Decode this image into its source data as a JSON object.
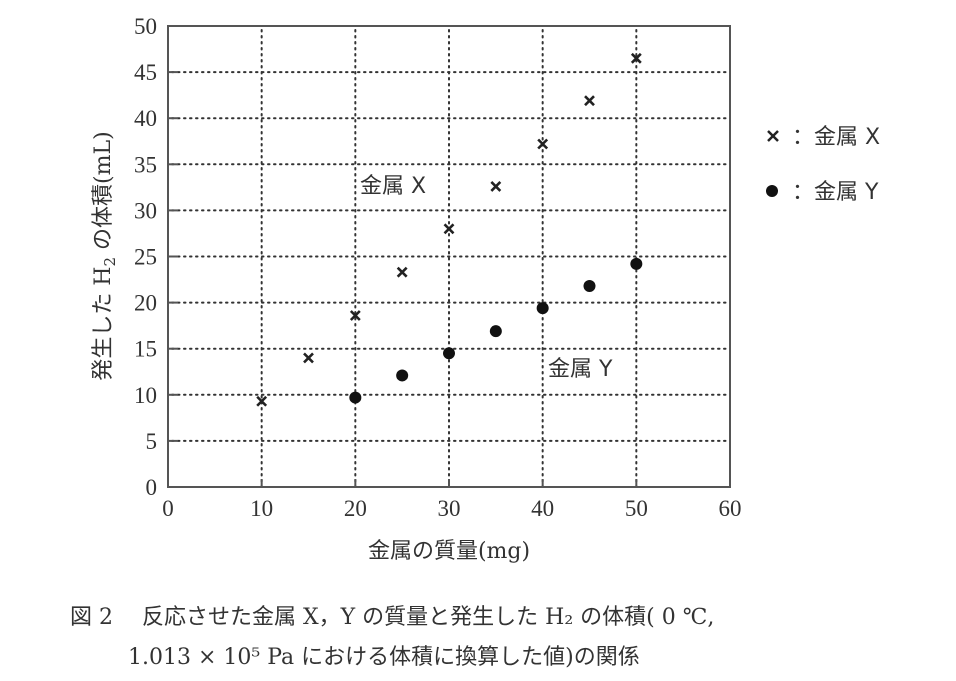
{
  "chart_data": {
    "type": "scatter",
    "title": "",
    "xlabel": "金属の質量(mg)",
    "ylabel": "発生したH₂の体積(mL)",
    "xlim": [
      0,
      60
    ],
    "ylim": [
      0,
      50
    ],
    "xticks": [
      0,
      10,
      20,
      30,
      40,
      50,
      60
    ],
    "yticks": [
      0,
      5,
      10,
      15,
      20,
      25,
      30,
      35,
      40,
      45,
      50
    ],
    "grid": "dotted",
    "legend_position": "right",
    "series": [
      {
        "name": "金属X",
        "marker": "x",
        "x": [
          10,
          15,
          20,
          25,
          30,
          35,
          40,
          45,
          50
        ],
        "y": [
          9.3,
          14.0,
          18.6,
          23.3,
          28.0,
          32.6,
          37.2,
          41.9,
          46.5
        ]
      },
      {
        "name": "金属Y",
        "marker": "filled-circle",
        "x": [
          20,
          25,
          30,
          35,
          40,
          45,
          50
        ],
        "y": [
          9.7,
          12.1,
          14.5,
          16.9,
          19.4,
          21.8,
          24.2
        ]
      }
    ],
    "annotations": [
      {
        "text": "金属X",
        "x": 25,
        "y": 33
      },
      {
        "text": "金属Y",
        "x": 45,
        "y": 13
      }
    ]
  },
  "legend": {
    "x_entry": "×  ：金属 X",
    "y_entry": "●  ：金属 Y",
    "x_label": "：金属 X",
    "y_label": "：金属 Y"
  },
  "annotations": {
    "x": "金属 X",
    "y": "金属 Y"
  },
  "axes": {
    "xlabel": "金属の質量(mg)",
    "ylabel_pre": "発生した H",
    "ylabel_sub": "2",
    "ylabel_post": " の体積(mL)"
  },
  "caption": {
    "line1": "図 2　 反応させた金属 X，Y の質量と発生した H₂ の体積( 0 ℃,",
    "line2": "1.013 × 10⁵ Pa における体積に換算した値)の関係"
  },
  "colors": {
    "ink": "#222222",
    "grid": "#333333",
    "frame": "#555555"
  }
}
